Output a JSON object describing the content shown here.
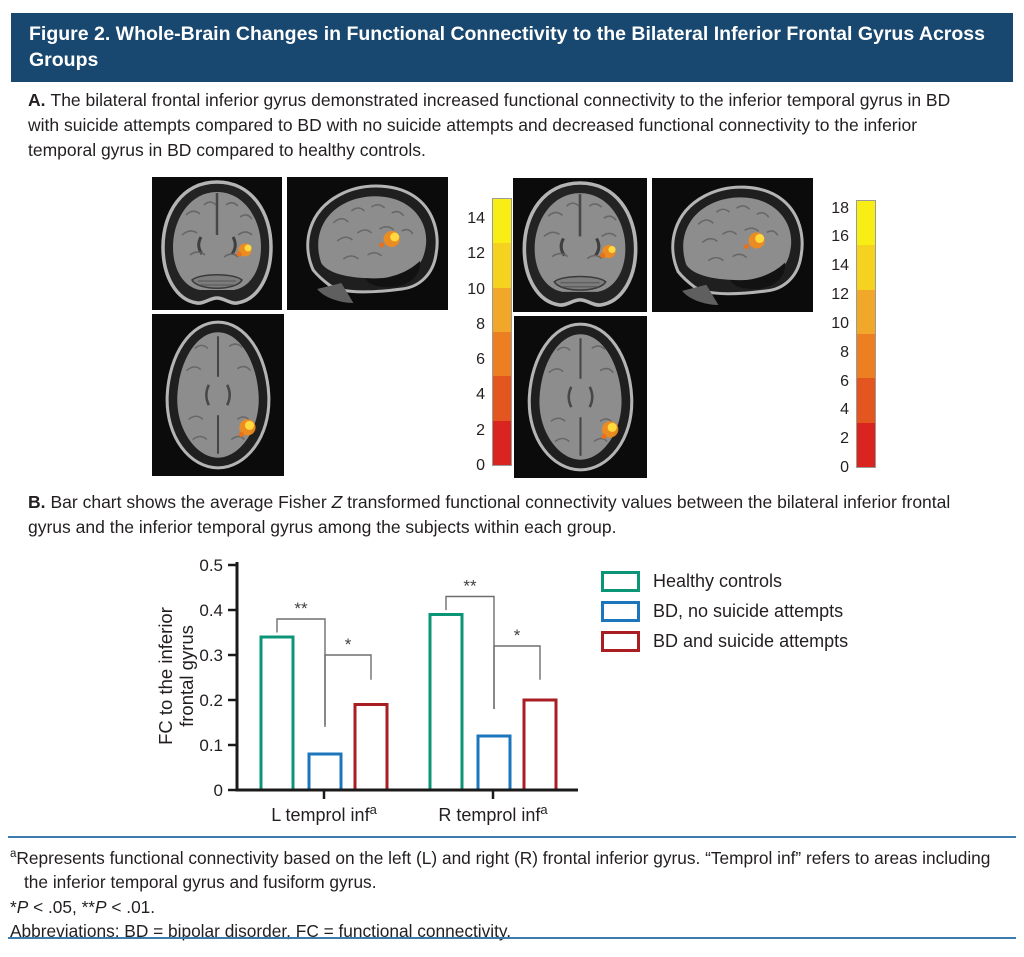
{
  "figure": {
    "title": "Figure 2. Whole-Brain Changes in Functional Connectivity to the Bilateral Inferior Frontal Gyrus Across Groups"
  },
  "panel_a": {
    "label": "A.",
    "text": "The bilateral frontal inferior gyrus demonstrated increased functional connectivity to the inferior temporal gyrus in BD with suicide attempts compared to BD with no suicide attempts and decreased functional connectivity to the inferior temporal gyrus in BD compared to healthy controls.",
    "brain_views": [
      "coronal",
      "sagittal",
      "axial"
    ],
    "colorbar_left": {
      "max_value": 15.2,
      "ticks": [
        14,
        12,
        10,
        8,
        6,
        4,
        2,
        0
      ],
      "band_colors": [
        "#f8ee15",
        "#f5d21f",
        "#f1a72a",
        "#eb7f22",
        "#e4561f",
        "#da2420"
      ]
    },
    "colorbar_right": {
      "max_value": 18.6,
      "ticks": [
        18,
        16,
        14,
        12,
        10,
        8,
        6,
        4,
        2,
        0
      ],
      "band_colors": [
        "#f8ee15",
        "#f5d21f",
        "#f1a72a",
        "#eb7f22",
        "#e4561f",
        "#da2420"
      ]
    }
  },
  "panel_b": {
    "label": "B.",
    "caption_before": "Bar chart shows the average Fisher ",
    "caption_italic": "Z",
    "caption_after": " transformed functional connectivity values between the bilateral inferior frontal gyrus and the inferior temporal gyrus among the subjects within each group."
  },
  "chart_data": {
    "type": "bar",
    "title": "",
    "ylabel_lines": [
      "FC to the inferior",
      "frontal gyrus"
    ],
    "categories": [
      "L temprol inf",
      "R temprol inf"
    ],
    "category_superscript": "a",
    "ylim": [
      0,
      0.5
    ],
    "yticks": [
      0,
      0.1,
      0.2,
      0.3,
      0.4,
      0.5
    ],
    "grid": false,
    "legend_position": "right",
    "bar_fill": "#ffffff",
    "series": [
      {
        "name": "Healthy controls",
        "color": "#0b9476",
        "values": [
          0.34,
          0.39
        ]
      },
      {
        "name": "BD, no suicide attempts",
        "color": "#1b76bc",
        "values": [
          0.08,
          0.12
        ]
      },
      {
        "name": "BD and suicide attempts",
        "color": "#a81e23",
        "values": [
          0.19,
          0.2
        ]
      }
    ],
    "significance": [
      {
        "group": 0,
        "from": 0,
        "to": 1,
        "label": "**",
        "y": 0.38,
        "drop_left_to": 0.35,
        "drop_right_to": 0.14
      },
      {
        "group": 0,
        "from": 1,
        "to": 2,
        "label": "*",
        "y": 0.3,
        "drop_left_to": 0.145,
        "drop_right_to": 0.245
      },
      {
        "group": 1,
        "from": 0,
        "to": 1,
        "label": "**",
        "y": 0.43,
        "drop_left_to": 0.4,
        "drop_right_to": 0.18
      },
      {
        "group": 1,
        "from": 1,
        "to": 2,
        "label": "*",
        "y": 0.32,
        "drop_left_to": 0.18,
        "drop_right_to": 0.245
      }
    ]
  },
  "footnotes": {
    "note_a_sup": "a",
    "note_a": "Represents functional connectivity based on the left (L) and right (R) frontal inferior gyrus. “Temprol inf” refers to areas including the inferior temporal gyrus and fusiform gyrus.",
    "pvalues": {
      "s1": "*",
      "p1": "P",
      "s2": " < .05, **",
      "p2": "P",
      "s3": " < .01."
    },
    "abbreviations": "Abbreviations: BD = bipolar disorder, FC = functional connectivity."
  }
}
